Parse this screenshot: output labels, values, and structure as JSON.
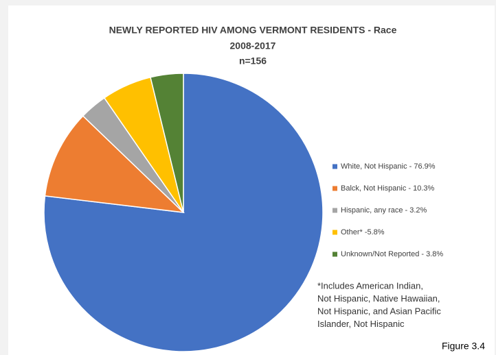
{
  "chart_data": {
    "type": "pie",
    "title": "NEWLY REPORTED HIV AMONG VERMONT RESIDENTS - Race",
    "subtitle": "2008-2017",
    "n_label": "n=156",
    "categories": [
      "White, Not Hispanic - 76.9%",
      "Balck, Not Hispanic - 10.3%",
      "Hispanic, any race - 3.2%",
      "Other* -5.8%",
      "Unknown/Not Reported - 3.8%"
    ],
    "values": [
      76.9,
      10.3,
      3.2,
      5.8,
      3.8
    ],
    "colors": [
      "#4472c4",
      "#ed7d31",
      "#a5a5a5",
      "#ffc000",
      "#548235"
    ],
    "legend": "right",
    "note": [
      "*Includes American Indian,",
      "Not Hispanic, Native Hawaiian,",
      "Not Hispanic, and Asian Pacific",
      "Islander, Not Hispanic"
    ],
    "figure_label": "Figure 3.4"
  }
}
